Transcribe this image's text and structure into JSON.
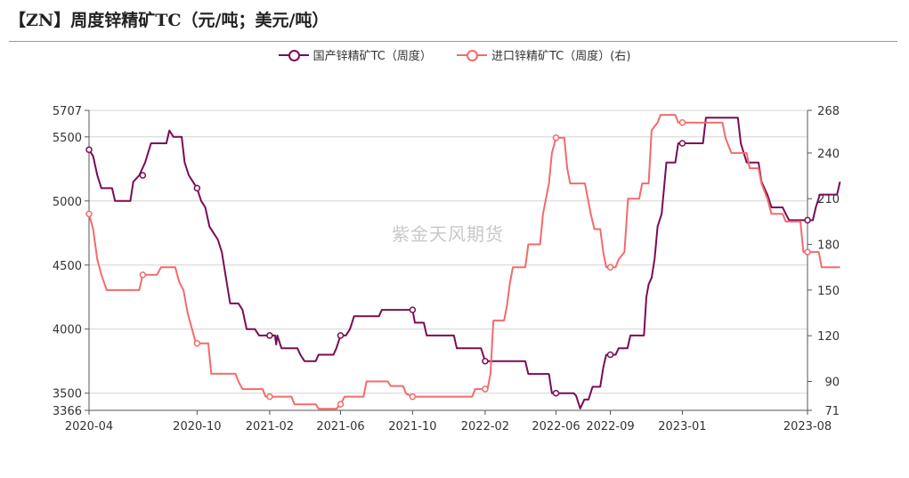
{
  "title": "【ZN】周度锌精矿TC（元/吨；美元/吨）",
  "watermark": "紫金天风期货",
  "legend": [
    {
      "label": "国产锌精矿TC（周度）",
      "color": "#7a0c55"
    },
    {
      "label": "进口锌精矿TC（周度）(右)",
      "color": "#f36b6b"
    }
  ],
  "chart_data": {
    "type": "line",
    "x_ticks": [
      "2020-04",
      "2020-10",
      "2021-02",
      "2021-06",
      "2021-10",
      "2022-02",
      "2022-06",
      "2022-09",
      "2023-01",
      "2023-08"
    ],
    "y_left": {
      "ticks": [
        3366,
        3500,
        4000,
        4500,
        5000,
        5500,
        5707
      ],
      "ylim": [
        3366,
        5707
      ]
    },
    "y_right": {
      "ticks": [
        71,
        90,
        120,
        150,
        180,
        210,
        240,
        268
      ],
      "ylim": [
        71,
        268
      ]
    },
    "grid": true,
    "series": [
      {
        "name": "国产锌精矿TC（周度）",
        "axis": "left",
        "color": "#7a0c55",
        "markers": [
          "2020-04",
          "2020-07",
          "2020-10",
          "2021-02",
          "2021-06",
          "2021-10",
          "2022-02",
          "2022-06",
          "2022-09",
          "2023-01",
          "2023-08"
        ],
        "points": [
          [
            "2020-04-01",
            5400
          ],
          [
            "2020-04-08",
            5350
          ],
          [
            "2020-04-15",
            5200
          ],
          [
            "2020-04-22",
            5100
          ],
          [
            "2020-05-10",
            5100
          ],
          [
            "2020-05-15",
            5000
          ],
          [
            "2020-06-10",
            5000
          ],
          [
            "2020-06-15",
            5150
          ],
          [
            "2020-06-25",
            5200
          ],
          [
            "2020-07-05",
            5300
          ],
          [
            "2020-07-15",
            5450
          ],
          [
            "2020-08-10",
            5450
          ],
          [
            "2020-08-15",
            5550
          ],
          [
            "2020-08-22",
            5500
          ],
          [
            "2020-09-05",
            5500
          ],
          [
            "2020-09-10",
            5300
          ],
          [
            "2020-09-17",
            5200
          ],
          [
            "2020-09-24",
            5150
          ],
          [
            "2020-10-01",
            5100
          ],
          [
            "2020-10-08",
            5000
          ],
          [
            "2020-10-15",
            4950
          ],
          [
            "2020-10-22",
            4800
          ],
          [
            "2020-10-29",
            4750
          ],
          [
            "2020-11-05",
            4700
          ],
          [
            "2020-11-12",
            4600
          ],
          [
            "2020-11-19",
            4400
          ],
          [
            "2020-11-26",
            4200
          ],
          [
            "2020-12-10",
            4200
          ],
          [
            "2020-12-17",
            4150
          ],
          [
            "2020-12-24",
            4000
          ],
          [
            "2021-01-07",
            4000
          ],
          [
            "2021-01-14",
            3950
          ],
          [
            "2021-02-10",
            3950
          ],
          [
            "2021-02-12",
            3880
          ],
          [
            "2021-02-14",
            3950
          ],
          [
            "2021-02-21",
            3850
          ],
          [
            "2021-03-20",
            3850
          ],
          [
            "2021-03-25",
            3800
          ],
          [
            "2021-04-01",
            3750
          ],
          [
            "2021-04-20",
            3750
          ],
          [
            "2021-04-25",
            3800
          ],
          [
            "2021-05-20",
            3800
          ],
          [
            "2021-05-25",
            3850
          ],
          [
            "2021-06-01",
            3950
          ],
          [
            "2021-06-10",
            3950
          ],
          [
            "2021-06-17",
            4000
          ],
          [
            "2021-06-24",
            4100
          ],
          [
            "2021-08-05",
            4100
          ],
          [
            "2021-08-10",
            4150
          ],
          [
            "2021-10-01",
            4150
          ],
          [
            "2021-10-05",
            4050
          ],
          [
            "2021-10-20",
            4050
          ],
          [
            "2021-10-25",
            3950
          ],
          [
            "2021-12-10",
            3950
          ],
          [
            "2021-12-15",
            3850
          ],
          [
            "2022-01-25",
            3850
          ],
          [
            "2022-02-01",
            3750
          ],
          [
            "2022-04-10",
            3750
          ],
          [
            "2022-04-15",
            3650
          ],
          [
            "2022-05-20",
            3650
          ],
          [
            "2022-05-25",
            3500
          ],
          [
            "2022-07-01",
            3500
          ],
          [
            "2022-07-05",
            3480
          ],
          [
            "2022-07-12",
            3380
          ],
          [
            "2022-07-19",
            3450
          ],
          [
            "2022-07-26",
            3450
          ],
          [
            "2022-08-02",
            3550
          ],
          [
            "2022-08-15",
            3550
          ],
          [
            "2022-08-20",
            3700
          ],
          [
            "2022-08-25",
            3800
          ],
          [
            "2022-09-10",
            3800
          ],
          [
            "2022-09-15",
            3850
          ],
          [
            "2022-09-30",
            3850
          ],
          [
            "2022-10-05",
            3950
          ],
          [
            "2022-10-28",
            3950
          ],
          [
            "2022-11-01",
            4250
          ],
          [
            "2022-11-05",
            4350
          ],
          [
            "2022-11-10",
            4400
          ],
          [
            "2022-11-15",
            4550
          ],
          [
            "2022-11-20",
            4800
          ],
          [
            "2022-11-27",
            4900
          ],
          [
            "2022-12-05",
            5300
          ],
          [
            "2022-12-20",
            5300
          ],
          [
            "2022-12-25",
            5450
          ],
          [
            "2023-02-05",
            5450
          ],
          [
            "2023-02-10",
            5650
          ],
          [
            "2023-04-05",
            5650
          ],
          [
            "2023-04-10",
            5450
          ],
          [
            "2023-04-20",
            5300
          ],
          [
            "2023-05-10",
            5300
          ],
          [
            "2023-05-15",
            5150
          ],
          [
            "2023-05-25",
            5050
          ],
          [
            "2023-06-01",
            4950
          ],
          [
            "2023-06-20",
            4950
          ],
          [
            "2023-06-25",
            4900
          ],
          [
            "2023-07-01",
            4850
          ],
          [
            "2023-08-10",
            4850
          ],
          [
            "2023-08-15",
            4950
          ],
          [
            "2023-08-22",
            5050
          ],
          [
            "2023-09-20",
            5050
          ],
          [
            "2023-09-25",
            5150
          ]
        ]
      },
      {
        "name": "进口锌精矿TC（周度）(右)",
        "axis": "right",
        "color": "#f36b6b",
        "markers": [
          "2020-04",
          "2020-07",
          "2020-10",
          "2021-02",
          "2021-06",
          "2021-10",
          "2022-02",
          "2022-06",
          "2022-09",
          "2023-01",
          "2023-08"
        ],
        "points": [
          [
            "2020-04-01",
            200
          ],
          [
            "2020-04-08",
            190
          ],
          [
            "2020-04-15",
            170
          ],
          [
            "2020-04-22",
            160
          ],
          [
            "2020-05-01",
            150
          ],
          [
            "2020-06-25",
            150
          ],
          [
            "2020-07-01",
            160
          ],
          [
            "2020-07-25",
            160
          ],
          [
            "2020-08-01",
            165
          ],
          [
            "2020-08-25",
            165
          ],
          [
            "2020-09-01",
            155
          ],
          [
            "2020-09-08",
            150
          ],
          [
            "2020-09-15",
            135
          ],
          [
            "2020-09-22",
            125
          ],
          [
            "2020-09-29",
            115
          ],
          [
            "2020-10-20",
            115
          ],
          [
            "2020-10-25",
            95
          ],
          [
            "2020-12-05",
            95
          ],
          [
            "2020-12-10",
            90
          ],
          [
            "2020-12-17",
            85
          ],
          [
            "2021-01-20",
            85
          ],
          [
            "2021-01-25",
            80
          ],
          [
            "2021-03-10",
            80
          ],
          [
            "2021-03-15",
            75
          ],
          [
            "2021-04-20",
            75
          ],
          [
            "2021-04-25",
            72
          ],
          [
            "2021-05-25",
            72
          ],
          [
            "2021-06-01",
            75
          ],
          [
            "2021-06-08",
            80
          ],
          [
            "2021-07-10",
            80
          ],
          [
            "2021-07-15",
            90
          ],
          [
            "2021-08-20",
            90
          ],
          [
            "2021-08-25",
            87
          ],
          [
            "2021-09-15",
            87
          ],
          [
            "2021-09-20",
            82
          ],
          [
            "2021-10-01",
            80
          ],
          [
            "2022-01-10",
            80
          ],
          [
            "2022-01-15",
            85
          ],
          [
            "2022-02-05",
            85
          ],
          [
            "2022-02-10",
            95
          ],
          [
            "2022-02-15",
            130
          ],
          [
            "2022-03-05",
            130
          ],
          [
            "2022-03-10",
            140
          ],
          [
            "2022-03-15",
            155
          ],
          [
            "2022-03-20",
            165
          ],
          [
            "2022-04-10",
            165
          ],
          [
            "2022-04-15",
            180
          ],
          [
            "2022-05-05",
            180
          ],
          [
            "2022-05-10",
            200
          ],
          [
            "2022-05-20",
            220
          ],
          [
            "2022-05-25",
            240
          ],
          [
            "2022-06-01",
            250
          ],
          [
            "2022-06-15",
            250
          ],
          [
            "2022-06-20",
            230
          ],
          [
            "2022-06-25",
            220
          ],
          [
            "2022-07-20",
            220
          ],
          [
            "2022-07-25",
            210
          ],
          [
            "2022-07-30",
            200
          ],
          [
            "2022-08-05",
            190
          ],
          [
            "2022-08-15",
            190
          ],
          [
            "2022-08-20",
            175
          ],
          [
            "2022-08-25",
            165
          ],
          [
            "2022-09-10",
            165
          ],
          [
            "2022-09-15",
            170
          ],
          [
            "2022-09-25",
            175
          ],
          [
            "2022-10-01",
            210
          ],
          [
            "2022-10-20",
            210
          ],
          [
            "2022-10-25",
            220
          ],
          [
            "2022-11-05",
            220
          ],
          [
            "2022-11-10",
            255
          ],
          [
            "2022-11-20",
            260
          ],
          [
            "2022-11-25",
            265
          ],
          [
            "2022-12-20",
            265
          ],
          [
            "2022-12-25",
            260
          ],
          [
            "2023-03-10",
            260
          ],
          [
            "2023-03-15",
            250
          ],
          [
            "2023-03-25",
            240
          ],
          [
            "2023-04-20",
            240
          ],
          [
            "2023-04-25",
            230
          ],
          [
            "2023-05-10",
            230
          ],
          [
            "2023-05-15",
            220
          ],
          [
            "2023-05-25",
            210
          ],
          [
            "2023-06-01",
            200
          ],
          [
            "2023-06-20",
            200
          ],
          [
            "2023-06-25",
            195
          ],
          [
            "2023-07-20",
            195
          ],
          [
            "2023-07-25",
            175
          ],
          [
            "2023-08-20",
            175
          ],
          [
            "2023-08-25",
            165
          ],
          [
            "2023-09-25",
            165
          ]
        ]
      }
    ]
  }
}
